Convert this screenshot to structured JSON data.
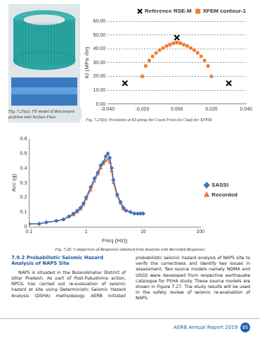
{
  "figure_a": {
    "caption": "Fig. 7.25(a): FE model of Benchmark problem with Surface Flaw"
  },
  "chart_data": [
    {
      "type": "scatter",
      "caption": "Fig. 7.25(b): Evolution of KI along the Crack Front (in Clad) for XFEM",
      "ylabel": "KI (MPa √m)",
      "xlim": [
        -0.04,
        0.04
      ],
      "xticks": [
        {
          "value": -0.04,
          "label": "-0.040"
        },
        {
          "value": -0.02,
          "label": "-0.020"
        },
        {
          "value": 0,
          "label": "0.000"
        },
        {
          "value": 0.02,
          "label": "0.020"
        },
        {
          "value": 0.04,
          "label": "0.040"
        }
      ],
      "ylim": [
        0,
        60
      ],
      "yticks": [
        {
          "value": 0,
          "label": "0.00"
        },
        {
          "value": 10,
          "label": "10.00"
        },
        {
          "value": 20,
          "label": "20.00"
        },
        {
          "value": 30,
          "label": "30.00"
        },
        {
          "value": 40,
          "label": "40.00"
        },
        {
          "value": 50,
          "label": "50.00"
        },
        {
          "value": 60,
          "label": "60.00"
        }
      ],
      "grid": true,
      "legend": "upper right",
      "series": [
        {
          "name": "Reference RSE-M",
          "color": "#000000",
          "marker": "cross",
          "line_style": "none",
          "x": [
            -0.03,
            0,
            0.03
          ],
          "values": [
            15,
            48,
            15
          ]
        },
        {
          "name": "XFEM contour-1",
          "color": "#ed7d31",
          "marker": "square",
          "line_style": "none",
          "x": [
            -0.02,
            -0.018,
            -0.016,
            -0.014,
            -0.012,
            -0.01,
            -0.008,
            -0.006,
            -0.004,
            -0.002,
            0,
            0.002,
            0.004,
            0.006,
            0.008,
            0.01,
            0.012,
            0.014,
            0.016,
            0.018,
            0.02
          ],
          "values": [
            20,
            27.5,
            31.5,
            34.5,
            37,
            39,
            40.5,
            42,
            43,
            44,
            44.5,
            44,
            43,
            42,
            40.5,
            39,
            37,
            34.5,
            31.5,
            27.5,
            20
          ]
        }
      ]
    },
    {
      "type": "line",
      "caption": "Fig. 7.26: Comparison of Responses obtained from Analysis with Recorded Responses",
      "xlabel": "Freq (Hz))",
      "ylabel": "Acc (g)",
      "log": "x",
      "xlim": [
        0.1,
        100
      ],
      "xticks": [
        0.1,
        1,
        10,
        100
      ],
      "ylim": [
        0,
        0.6
      ],
      "yticks": [
        0,
        0.1,
        0.2,
        0.3,
        0.4,
        0.5,
        0.6
      ],
      "grid": false,
      "legend": "right",
      "x": [
        0.1,
        0.15,
        0.2,
        0.3,
        0.4,
        0.5,
        0.6,
        0.7,
        0.8,
        0.9,
        1,
        1.2,
        1.4,
        1.6,
        1.8,
        2,
        2.2,
        2.4,
        2.6,
        2.8,
        3,
        3.5,
        4,
        4.5,
        5,
        6,
        7,
        8,
        9,
        10
      ],
      "series": [
        {
          "name": "SASSI",
          "color": "#4472c4",
          "marker": "diamond",
          "line_style": "solid",
          "values": [
            0.02,
            0.02,
            0.03,
            0.04,
            0.05,
            0.07,
            0.09,
            0.11,
            0.13,
            0.16,
            0.2,
            0.27,
            0.33,
            0.37,
            0.42,
            0.44,
            0.48,
            0.5,
            0.47,
            0.4,
            0.32,
            0.22,
            0.17,
            0.13,
            0.11,
            0.1,
            0.09,
            0.09,
            0.09,
            0.09
          ]
        },
        {
          "name": "Recorded",
          "color": "#ed7d31",
          "marker": "triangle",
          "line_style": "solid",
          "values": [
            0.02,
            0.02,
            0.03,
            0.04,
            0.05,
            0.07,
            0.08,
            0.1,
            0.12,
            0.15,
            0.19,
            0.25,
            0.31,
            0.36,
            0.4,
            0.43,
            0.45,
            0.46,
            0.44,
            0.38,
            0.3,
            0.21,
            0.16,
            0.12,
            0.11,
            0.1,
            0.09,
            0.09,
            0.09,
            0.09
          ]
        }
      ]
    }
  ],
  "section": {
    "heading": "7.9.2 Probabilistic Seismic Hazard Analysis of NAPS Site",
    "paragraph": "NAPS is situated in the Bulandshahar District of Uttar Pradesh. As part of Post-Fukushima action, NPCIL has carried out re-evaluation of seismic hazard at site using Deterministic Seismic Hazard Analysis (DSHA) methodology. AERB initiated probabilistic seismic hazard analysis of NAPS site to verify the correctness and identify key issues in assessment. Two source models namely NDMA and USGS were developed from respective earthquake catalogue for PSHA study. These source models are shown in Figure 7.27. The study results will be used in the safety review of seismic re-evaluation of NAPS."
  },
  "footer": {
    "text": "AERB Annual Report 2019",
    "page": "85"
  }
}
